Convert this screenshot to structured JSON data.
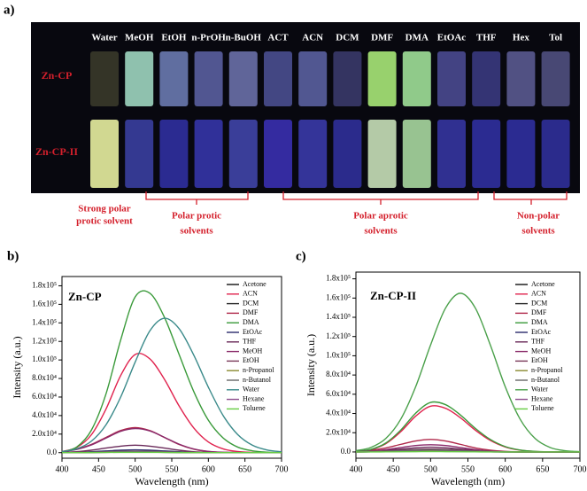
{
  "panel_a": {
    "label": "a)",
    "solvents": [
      "Water",
      "MeOH",
      "EtOH",
      "n-PrOH",
      "n-BuOH",
      "ACT",
      "ACN",
      "DCM",
      "DMF",
      "DMA",
      "EtOAc",
      "THF",
      "Hex",
      "Tol"
    ],
    "samples": [
      "Zn-CP",
      "Zn-CP-II"
    ],
    "groups": [
      {
        "lines": [
          "Strong polar",
          "protic solvent"
        ]
      },
      {
        "lines": [
          "Polar protic",
          "solvents"
        ]
      },
      {
        "lines": [
          "Polar aprotic",
          "solvents"
        ]
      },
      {
        "lines": [
          "Non-polar",
          "solvents"
        ]
      }
    ]
  },
  "chart_data": [
    {
      "type": "line",
      "label": "b)",
      "title": "Zn-CP",
      "x_label": "Wavelength (nm)",
      "y_label": "Intensity (a.u.)",
      "x": [
        400,
        420,
        440,
        460,
        480,
        500,
        520,
        540,
        560,
        580,
        600,
        620,
        640,
        660,
        680,
        700
      ],
      "xlim": [
        400,
        700
      ],
      "xticks": [
        400,
        450,
        500,
        550,
        600,
        650,
        700
      ],
      "ylim": [
        -6000,
        190000
      ],
      "yticks": [
        {
          "value": 0,
          "label": "0.0"
        },
        {
          "value": 20000,
          "label": "2.0x10⁴"
        },
        {
          "value": 40000,
          "label": "4.0x10⁴"
        },
        {
          "value": 60000,
          "label": "6.0x10⁴"
        },
        {
          "value": 80000,
          "label": "8.0x10⁴"
        },
        {
          "value": 100000,
          "label": "1.0x10⁵"
        },
        {
          "value": 120000,
          "label": "1.2x10⁵"
        },
        {
          "value": 140000,
          "label": "1.4x10⁵"
        },
        {
          "value": 160000,
          "label": "1.6x10⁵"
        },
        {
          "value": 180000,
          "label": "1.8x10⁵"
        }
      ],
      "legend": "upper right",
      "series": [
        {
          "name": "Acetone",
          "color": "#111111",
          "values": [
            0,
            100,
            300,
            600,
            900,
            1000,
            900,
            600,
            300,
            100,
            0,
            0,
            0,
            0,
            0,
            0
          ]
        },
        {
          "name": "ACN",
          "color": "#e0234e",
          "values": [
            1200,
            5600,
            19100,
            46800,
            82900,
            105900,
            101200,
            79100,
            50400,
            26700,
            11500,
            4100,
            1200,
            300,
            100,
            0
          ]
        },
        {
          "name": "DCM",
          "color": "#2a2a2a",
          "values": [
            0,
            100,
            200,
            400,
            600,
            700,
            600,
            400,
            200,
            100,
            0,
            0,
            0,
            0,
            0,
            0
          ]
        },
        {
          "name": "DMF",
          "color": "#b0284a",
          "values": [
            1200,
            3700,
            8800,
            16400,
            23800,
            27000,
            23800,
            16400,
            8800,
            3700,
            1200,
            300,
            100,
            0,
            0,
            0
          ]
        },
        {
          "name": "DMA",
          "color": "#3a9a3a",
          "values": [
            1000,
            6000,
            24000,
            63000,
            121000,
            168000,
            172000,
            146000,
            106000,
            66000,
            35000,
            16000,
            6000,
            2000,
            500,
            0
          ]
        },
        {
          "name": "EtOAc",
          "color": "#2b2b6b",
          "values": [
            100,
            400,
            1000,
            1800,
            2600,
            3000,
            2600,
            1800,
            1000,
            400,
            100,
            0,
            0,
            0,
            0,
            0
          ]
        },
        {
          "name": "THF",
          "color": "#6a2a5a",
          "values": [
            300,
            1000,
            2600,
            4900,
            7000,
            8000,
            7000,
            4900,
            2600,
            1000,
            300,
            100,
            0,
            0,
            0,
            0
          ]
        },
        {
          "name": "MeOH",
          "color": "#8a2a6a",
          "values": [
            1000,
            3400,
            8300,
            15600,
            23000,
            26000,
            23500,
            16500,
            9200,
            4000,
            1400,
            400,
            100,
            0,
            0,
            0
          ]
        },
        {
          "name": "EtOH",
          "color": "#7a3a5a",
          "values": [
            0,
            200,
            500,
            900,
            1300,
            1500,
            1300,
            900,
            500,
            200,
            0,
            0,
            0,
            0,
            0,
            0
          ]
        },
        {
          "name": "n-Propanol",
          "color": "#8a8a30",
          "values": [
            0,
            100,
            300,
            500,
            700,
            800,
            700,
            500,
            300,
            100,
            0,
            0,
            0,
            0,
            0,
            0
          ]
        },
        {
          "name": "n-Butanol",
          "color": "#666666",
          "values": [
            0,
            100,
            400,
            700,
            1000,
            1200,
            1000,
            700,
            400,
            100,
            0,
            0,
            0,
            0,
            0,
            0
          ]
        },
        {
          "name": "Water",
          "color": "#3a8a8a",
          "values": [
            1100,
            4100,
            12300,
            29900,
            59600,
            97700,
            131300,
            145000,
            133800,
            105300,
            70600,
            40300,
            19600,
            8100,
            2900,
            900
          ]
        },
        {
          "name": "Hexane",
          "color": "#8a4a8a",
          "values": [
            0,
            100,
            200,
            300,
            400,
            500,
            400,
            300,
            200,
            100,
            0,
            0,
            0,
            0,
            0,
            0
          ]
        },
        {
          "name": "Toluene",
          "color": "#66cc44",
          "values": [
            0,
            0,
            100,
            200,
            300,
            300,
            300,
            200,
            100,
            0,
            0,
            0,
            0,
            0,
            0,
            0
          ]
        }
      ]
    },
    {
      "type": "line",
      "label": "c)",
      "title": "Zn-CP-II",
      "x_label": "Wavelength (nm)",
      "y_label": "Intensity (a.u.)",
      "x": [
        400,
        420,
        440,
        460,
        480,
        500,
        520,
        540,
        560,
        580,
        600,
        620,
        640,
        660,
        680,
        700
      ],
      "xlim": [
        400,
        700
      ],
      "xticks": [
        400,
        450,
        500,
        550,
        600,
        650,
        700
      ],
      "ylim": [
        -6500,
        187000
      ],
      "yticks": [
        {
          "value": 0,
          "label": "0.0"
        },
        {
          "value": 20000,
          "label": "2.0x10⁴"
        },
        {
          "value": 40000,
          "label": "4.0x10⁴"
        },
        {
          "value": 60000,
          "label": "6.0x10⁴"
        },
        {
          "value": 80000,
          "label": "8.0x10⁴"
        },
        {
          "value": 100000,
          "label": "1.0x10⁵"
        },
        {
          "value": 120000,
          "label": "1.2x10⁵"
        },
        {
          "value": 140000,
          "label": "1.4x10⁵"
        },
        {
          "value": 160000,
          "label": "1.6x10⁵"
        },
        {
          "value": 180000,
          "label": "1.8x10⁵"
        }
      ],
      "legend": "upper right",
      "series": [
        {
          "name": "Acetone",
          "color": "#111111",
          "values": [
            0,
            200,
            600,
            1200,
            1800,
            2000,
            1800,
            1200,
            600,
            200,
            0,
            0,
            0,
            0,
            0,
            0
          ]
        },
        {
          "name": "ACN",
          "color": "#e0234e",
          "values": [
            500,
            2500,
            8600,
            21000,
            37200,
            47600,
            45400,
            35500,
            22600,
            12000,
            5200,
            1800,
            500,
            130,
            0,
            0
          ]
        },
        {
          "name": "DCM",
          "color": "#2a2a2a",
          "values": [
            0,
            100,
            400,
            800,
            1100,
            1300,
            1100,
            800,
            400,
            100,
            0,
            0,
            0,
            0,
            0,
            0
          ]
        },
        {
          "name": "DMF",
          "color": "#b0284a",
          "values": [
            600,
            1800,
            4200,
            7900,
            11400,
            13000,
            11400,
            7900,
            4200,
            1800,
            600,
            150,
            0,
            0,
            0,
            0
          ]
        },
        {
          "name": "DMA",
          "color": "#3a9a3a",
          "values": [
            600,
            2700,
            9300,
            22700,
            40300,
            51500,
            49200,
            38400,
            24500,
            13000,
            5600,
            2000,
            600,
            150,
            50,
            0
          ]
        },
        {
          "name": "EtOAc",
          "color": "#2b2b6b",
          "values": [
            100,
            300,
            800,
            1500,
            2100,
            2400,
            2100,
            1500,
            800,
            300,
            100,
            0,
            0,
            0,
            0,
            0
          ]
        },
        {
          "name": "THF",
          "color": "#6a2a5a",
          "values": [
            200,
            600,
            1600,
            3000,
            4300,
            5000,
            4300,
            3000,
            1600,
            600,
            200,
            0,
            0,
            0,
            0,
            0
          ]
        },
        {
          "name": "MeOH",
          "color": "#8a2a6a",
          "values": [
            300,
            900,
            2400,
            4600,
            6700,
            7500,
            6700,
            4600,
            2400,
            900,
            300,
            100,
            0,
            0,
            0,
            0
          ]
        },
        {
          "name": "EtOH",
          "color": "#7a3a5a",
          "values": [
            100,
            400,
            1000,
            1900,
            2700,
            3000,
            2700,
            1900,
            1000,
            400,
            100,
            0,
            0,
            0,
            0,
            0
          ]
        },
        {
          "name": "n-Propanol",
          "color": "#8a8a30",
          "values": [
            0,
            200,
            500,
            900,
            1300,
            1500,
            1300,
            900,
            500,
            200,
            0,
            0,
            0,
            0,
            0,
            0
          ]
        },
        {
          "name": "n-Butanol",
          "color": "#666666",
          "values": [
            100,
            300,
            700,
            1300,
            1900,
            2200,
            1900,
            1300,
            700,
            300,
            100,
            0,
            0,
            0,
            0,
            0
          ]
        },
        {
          "name": "Water",
          "color": "#4aa04a",
          "values": [
            1300,
            4700,
            14000,
            34000,
            67800,
            111200,
            149500,
            165000,
            149500,
            111200,
            67800,
            34000,
            14000,
            4700,
            1300,
            300
          ]
        },
        {
          "name": "Hexane",
          "color": "#8a4a8a",
          "values": [
            0,
            100,
            200,
            400,
            600,
            700,
            600,
            400,
            200,
            100,
            0,
            0,
            0,
            0,
            0,
            0
          ]
        },
        {
          "name": "Toluene",
          "color": "#66cc44",
          "values": [
            0,
            0,
            100,
            200,
            300,
            400,
            300,
            200,
            100,
            0,
            0,
            0,
            0,
            0,
            0,
            0
          ]
        }
      ]
    }
  ]
}
